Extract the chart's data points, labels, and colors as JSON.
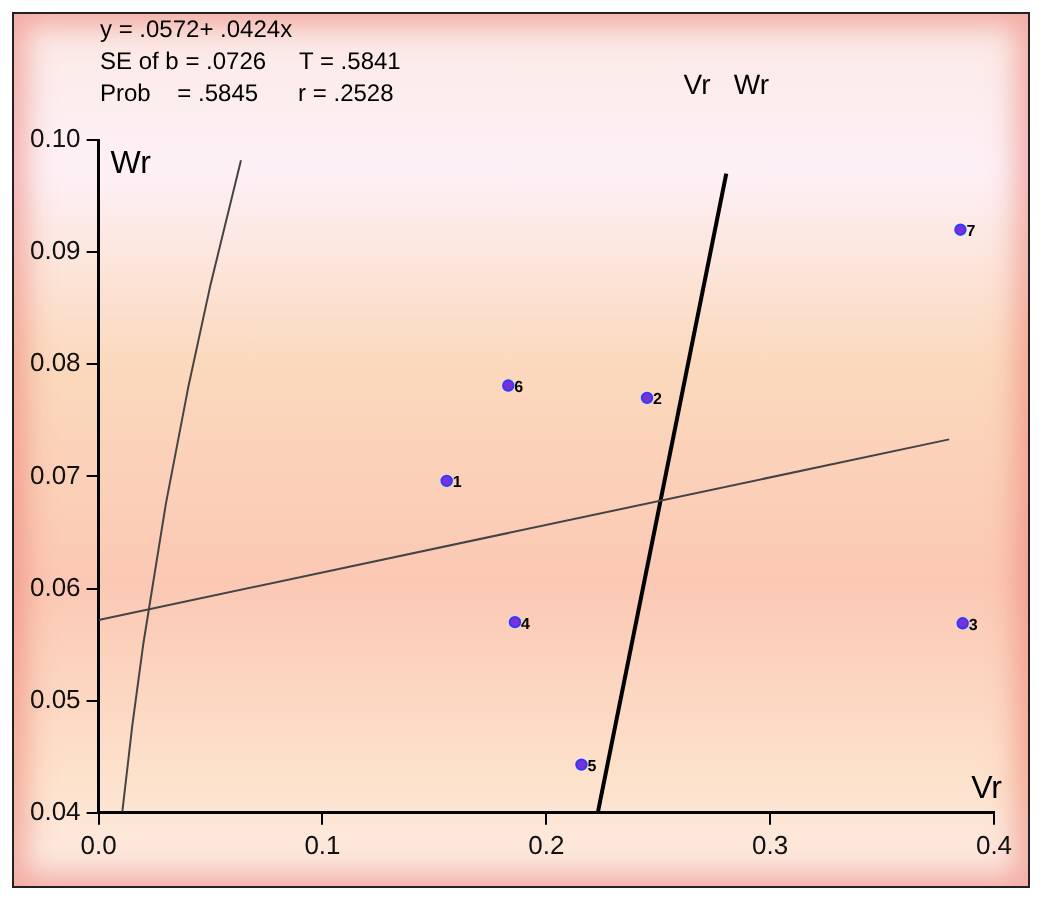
{
  "chart_data": {
    "type": "scatter",
    "xlabel": "Vr",
    "ylabel": "Wr",
    "xlim": [
      0,
      0.4
    ],
    "xticks": [
      {
        "value": 0,
        "label": "0.0"
      },
      0.1,
      0.2,
      0.3,
      0.4
    ],
    "ylim": [
      0.04,
      0.1
    ],
    "yticks": [
      0.04,
      0.05,
      0.06,
      0.07,
      0.08,
      0.09,
      {
        "value": 0.1,
        "label": "0.10"
      }
    ],
    "grid": false,
    "legend": false,
    "series": [
      {
        "type": "scatter",
        "marker": "circle",
        "color": "#7b2fd6",
        "x": [
          0.1555,
          0.245,
          0.386,
          0.186,
          0.2157,
          0.183,
          0.385
        ],
        "values": [
          0.0696,
          0.077,
          0.0569,
          0.057,
          0.0443,
          0.0781,
          0.092
        ]
      },
      {
        "type": "line",
        "color": "#444444",
        "x": [
          0,
          0.38
        ],
        "values": [
          0.0572,
          0.0733
        ]
      },
      {
        "type": "line",
        "color": "#444444",
        "x": [
          0.0106,
          0.015,
          0.02,
          0.03,
          0.04,
          0.05,
          0.0636
        ],
        "values": [
          0.0401,
          0.0477,
          0.0551,
          0.0675,
          0.0779,
          0.0871,
          0.0982
        ]
      },
      {
        "type": "line",
        "name": "Vr   Wr",
        "color": "#000000",
        "x": [
          0.223,
          0.2804
        ],
        "values": [
          0.04,
          0.097
        ]
      }
    ],
    "annotations": [
      "y = .0572+ .0424x",
      "SE of b = .0726     T = .5841",
      "Prob    = .5845      r = .2528",
      {
        "text": "1",
        "x": 0.1555,
        "y": 0.0696
      },
      {
        "text": "2",
        "x": 0.245,
        "y": 0.077
      },
      {
        "text": "3",
        "x": 0.386,
        "y": 0.0569
      },
      {
        "text": "4",
        "x": 0.186,
        "y": 0.057
      },
      {
        "text": "5",
        "x": 0.2157,
        "y": 0.0443
      },
      {
        "text": "6",
        "x": 0.183,
        "y": 0.0781
      },
      {
        "text": "7",
        "x": 0.385,
        "y": 0.092
      }
    ]
  }
}
